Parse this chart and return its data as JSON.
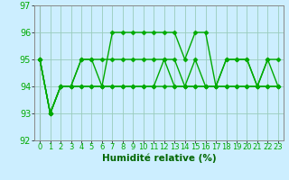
{
  "x": [
    0,
    1,
    2,
    3,
    4,
    5,
    6,
    7,
    8,
    9,
    10,
    11,
    12,
    13,
    14,
    15,
    16,
    17,
    18,
    19,
    20,
    21,
    22,
    23
  ],
  "s1": [
    95,
    93,
    94,
    94,
    95,
    95,
    94,
    96,
    96,
    96,
    96,
    96,
    96,
    96,
    95,
    96,
    96,
    94,
    95,
    95,
    95,
    94,
    95,
    94
  ],
  "s2": [
    95,
    93,
    94,
    94,
    95,
    95,
    95,
    95,
    95,
    95,
    95,
    95,
    95,
    95,
    94,
    95,
    94,
    94,
    95,
    95,
    95,
    94,
    95,
    95
  ],
  "s3": [
    95,
    93,
    94,
    94,
    94,
    94,
    94,
    94,
    94,
    94,
    94,
    94,
    95,
    94,
    94,
    94,
    94,
    94,
    94,
    94,
    94,
    94,
    94,
    94
  ],
  "s4": [
    95,
    93,
    94,
    94,
    94,
    94,
    94,
    94,
    94,
    94,
    94,
    94,
    94,
    94,
    94,
    94,
    94,
    94,
    94,
    94,
    94,
    94,
    94,
    94
  ],
  "line_color": "#00aa00",
  "marker": "D",
  "markersize": 2.5,
  "linewidth": 1.0,
  "bg_color": "#cceeff",
  "grid_color": "#99ccbb",
  "ylim": [
    92,
    97
  ],
  "yticks": [
    92,
    93,
    94,
    95,
    96,
    97
  ],
  "xticks": [
    0,
    1,
    2,
    3,
    4,
    5,
    6,
    7,
    8,
    9,
    10,
    11,
    12,
    13,
    14,
    15,
    16,
    17,
    18,
    19,
    20,
    21,
    22,
    23
  ],
  "xlabel": "Humidité relative (%)",
  "xlabel_color": "#006600",
  "xlabel_fontsize": 7.5,
  "tick_fontsize": 6,
  "tick_color": "#00aa00"
}
